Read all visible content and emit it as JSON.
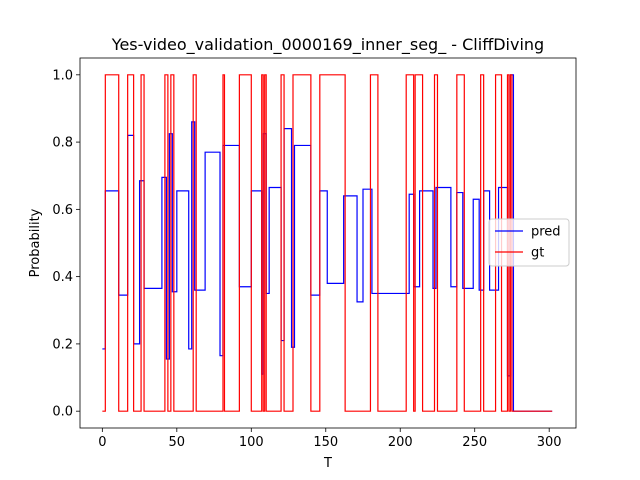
{
  "chart_data": {
    "type": "line",
    "title": "Yes-video_validation_0000169_inner_seg_ - CliffDiving",
    "xlabel": "T",
    "ylabel": "Probability",
    "xlim": [
      -15,
      318
    ],
    "ylim": [
      -0.05,
      1.05
    ],
    "xticks": [
      0,
      50,
      100,
      150,
      200,
      250,
      300
    ],
    "yticks": [
      0.0,
      0.2,
      0.4,
      0.6,
      0.8,
      1.0
    ],
    "xtick_labels": [
      "0",
      "50",
      "100",
      "150",
      "200",
      "250",
      "300"
    ],
    "ytick_labels": [
      "0.0",
      "0.2",
      "0.4",
      "0.6",
      "0.8",
      "1.0"
    ],
    "grid": false,
    "legend_position": "center-right",
    "series": [
      {
        "name": "pred",
        "color": "#0000ff",
        "step": true,
        "x": [
          0,
          2,
          11,
          17,
          21,
          25,
          28,
          40,
          43,
          45,
          47,
          50,
          58,
          60,
          62,
          69,
          79,
          81,
          92,
          100,
          107,
          108,
          110,
          112,
          120,
          122,
          127,
          129,
          140,
          146,
          151,
          162,
          171,
          175,
          181,
          206,
          209,
          213,
          222,
          224,
          234,
          238,
          242,
          249,
          253,
          256,
          260,
          266,
          272,
          274,
          276,
          302
        ],
        "y": [
          0.185,
          0.655,
          0.345,
          0.82,
          0.2,
          0.685,
          0.365,
          0.695,
          0.155,
          0.825,
          0.355,
          0.655,
          0.185,
          0.86,
          0.36,
          0.77,
          0.165,
          0.79,
          0.37,
          0.655,
          0.11,
          0.825,
          0.35,
          0.665,
          0.21,
          0.84,
          0.19,
          0.79,
          0.345,
          0.655,
          0.38,
          0.64,
          0.325,
          0.66,
          0.35,
          0.645,
          0.37,
          0.655,
          0.365,
          0.665,
          0.37,
          0.65,
          0.365,
          0.63,
          0.36,
          0.655,
          0.36,
          0.665,
          0.105,
          1.0,
          0.0,
          0.0
        ]
      },
      {
        "name": "gt",
        "color": "#ff0000",
        "step": true,
        "x": [
          0,
          2,
          11,
          17,
          21,
          26,
          28,
          42,
          44,
          46,
          48,
          61,
          63,
          81,
          82,
          92,
          100,
          107,
          108,
          109,
          110,
          120,
          122,
          128,
          140,
          146,
          163,
          180,
          185,
          204,
          209,
          210,
          215,
          223,
          225,
          238,
          243,
          254,
          256,
          264,
          268,
          272,
          273,
          274,
          275,
          277,
          302
        ],
        "y": [
          0.0,
          1.0,
          0.0,
          1.0,
          0.0,
          1.0,
          0.0,
          1.0,
          0.0,
          1.0,
          0.0,
          1.0,
          0.0,
          1.0,
          0.0,
          1.0,
          0.0,
          1.0,
          0.0,
          1.0,
          0.0,
          1.0,
          0.0,
          1.0,
          0.0,
          1.0,
          0.0,
          1.0,
          0.0,
          1.0,
          0.0,
          1.0,
          0.0,
          1.0,
          0.0,
          1.0,
          0.0,
          1.0,
          0.0,
          1.0,
          0.0,
          1.0,
          0.0,
          1.0,
          0.0,
          0.0,
          0.0
        ]
      }
    ]
  }
}
